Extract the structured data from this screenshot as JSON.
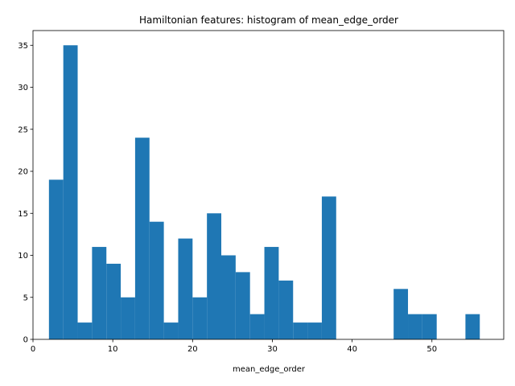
{
  "chart_data": {
    "type": "bar",
    "title": "Hamiltonian features: histogram of mean_edge_order",
    "xlabel": "mean_edge_order",
    "ylabel": "",
    "xlim": [
      0,
      59
    ],
    "ylim": [
      0,
      36.75
    ],
    "x_ticks": [
      0,
      10,
      20,
      30,
      40,
      50
    ],
    "y_ticks": [
      0,
      5,
      10,
      15,
      20,
      25,
      30,
      35
    ],
    "bar_color": "#1f77b4",
    "bins": [
      {
        "x0": 2.0,
        "x1": 3.8,
        "value": 19
      },
      {
        "x0": 3.8,
        "x1": 5.6,
        "value": 35
      },
      {
        "x0": 5.6,
        "x1": 7.4,
        "value": 2
      },
      {
        "x0": 7.4,
        "x1": 9.2,
        "value": 11
      },
      {
        "x0": 9.2,
        "x1": 11.0,
        "value": 9
      },
      {
        "x0": 11.0,
        "x1": 12.8,
        "value": 5
      },
      {
        "x0": 12.8,
        "x1": 14.6,
        "value": 24
      },
      {
        "x0": 14.6,
        "x1": 16.4,
        "value": 14
      },
      {
        "x0": 16.4,
        "x1": 18.2,
        "value": 2
      },
      {
        "x0": 18.2,
        "x1": 20.0,
        "value": 12
      },
      {
        "x0": 20.0,
        "x1": 21.8,
        "value": 5
      },
      {
        "x0": 21.8,
        "x1": 23.6,
        "value": 15
      },
      {
        "x0": 23.6,
        "x1": 25.4,
        "value": 10
      },
      {
        "x0": 25.4,
        "x1": 27.2,
        "value": 8
      },
      {
        "x0": 27.2,
        "x1": 29.0,
        "value": 3
      },
      {
        "x0": 29.0,
        "x1": 30.8,
        "value": 11
      },
      {
        "x0": 30.8,
        "x1": 32.6,
        "value": 7
      },
      {
        "x0": 32.6,
        "x1": 34.4,
        "value": 2
      },
      {
        "x0": 34.4,
        "x1": 36.2,
        "value": 2
      },
      {
        "x0": 36.2,
        "x1": 38.0,
        "value": 17
      },
      {
        "x0": 38.0,
        "x1": 39.8,
        "value": 0
      },
      {
        "x0": 39.8,
        "x1": 41.6,
        "value": 0
      },
      {
        "x0": 41.6,
        "x1": 43.4,
        "value": 0
      },
      {
        "x0": 43.4,
        "x1": 45.2,
        "value": 0
      },
      {
        "x0": 45.2,
        "x1": 47.0,
        "value": 6
      },
      {
        "x0": 47.0,
        "x1": 48.8,
        "value": 3
      },
      {
        "x0": 48.8,
        "x1": 50.6,
        "value": 3
      },
      {
        "x0": 50.6,
        "x1": 52.4,
        "value": 0
      },
      {
        "x0": 52.4,
        "x1": 54.2,
        "value": 0
      },
      {
        "x0": 54.2,
        "x1": 56.0,
        "value": 3
      }
    ]
  }
}
